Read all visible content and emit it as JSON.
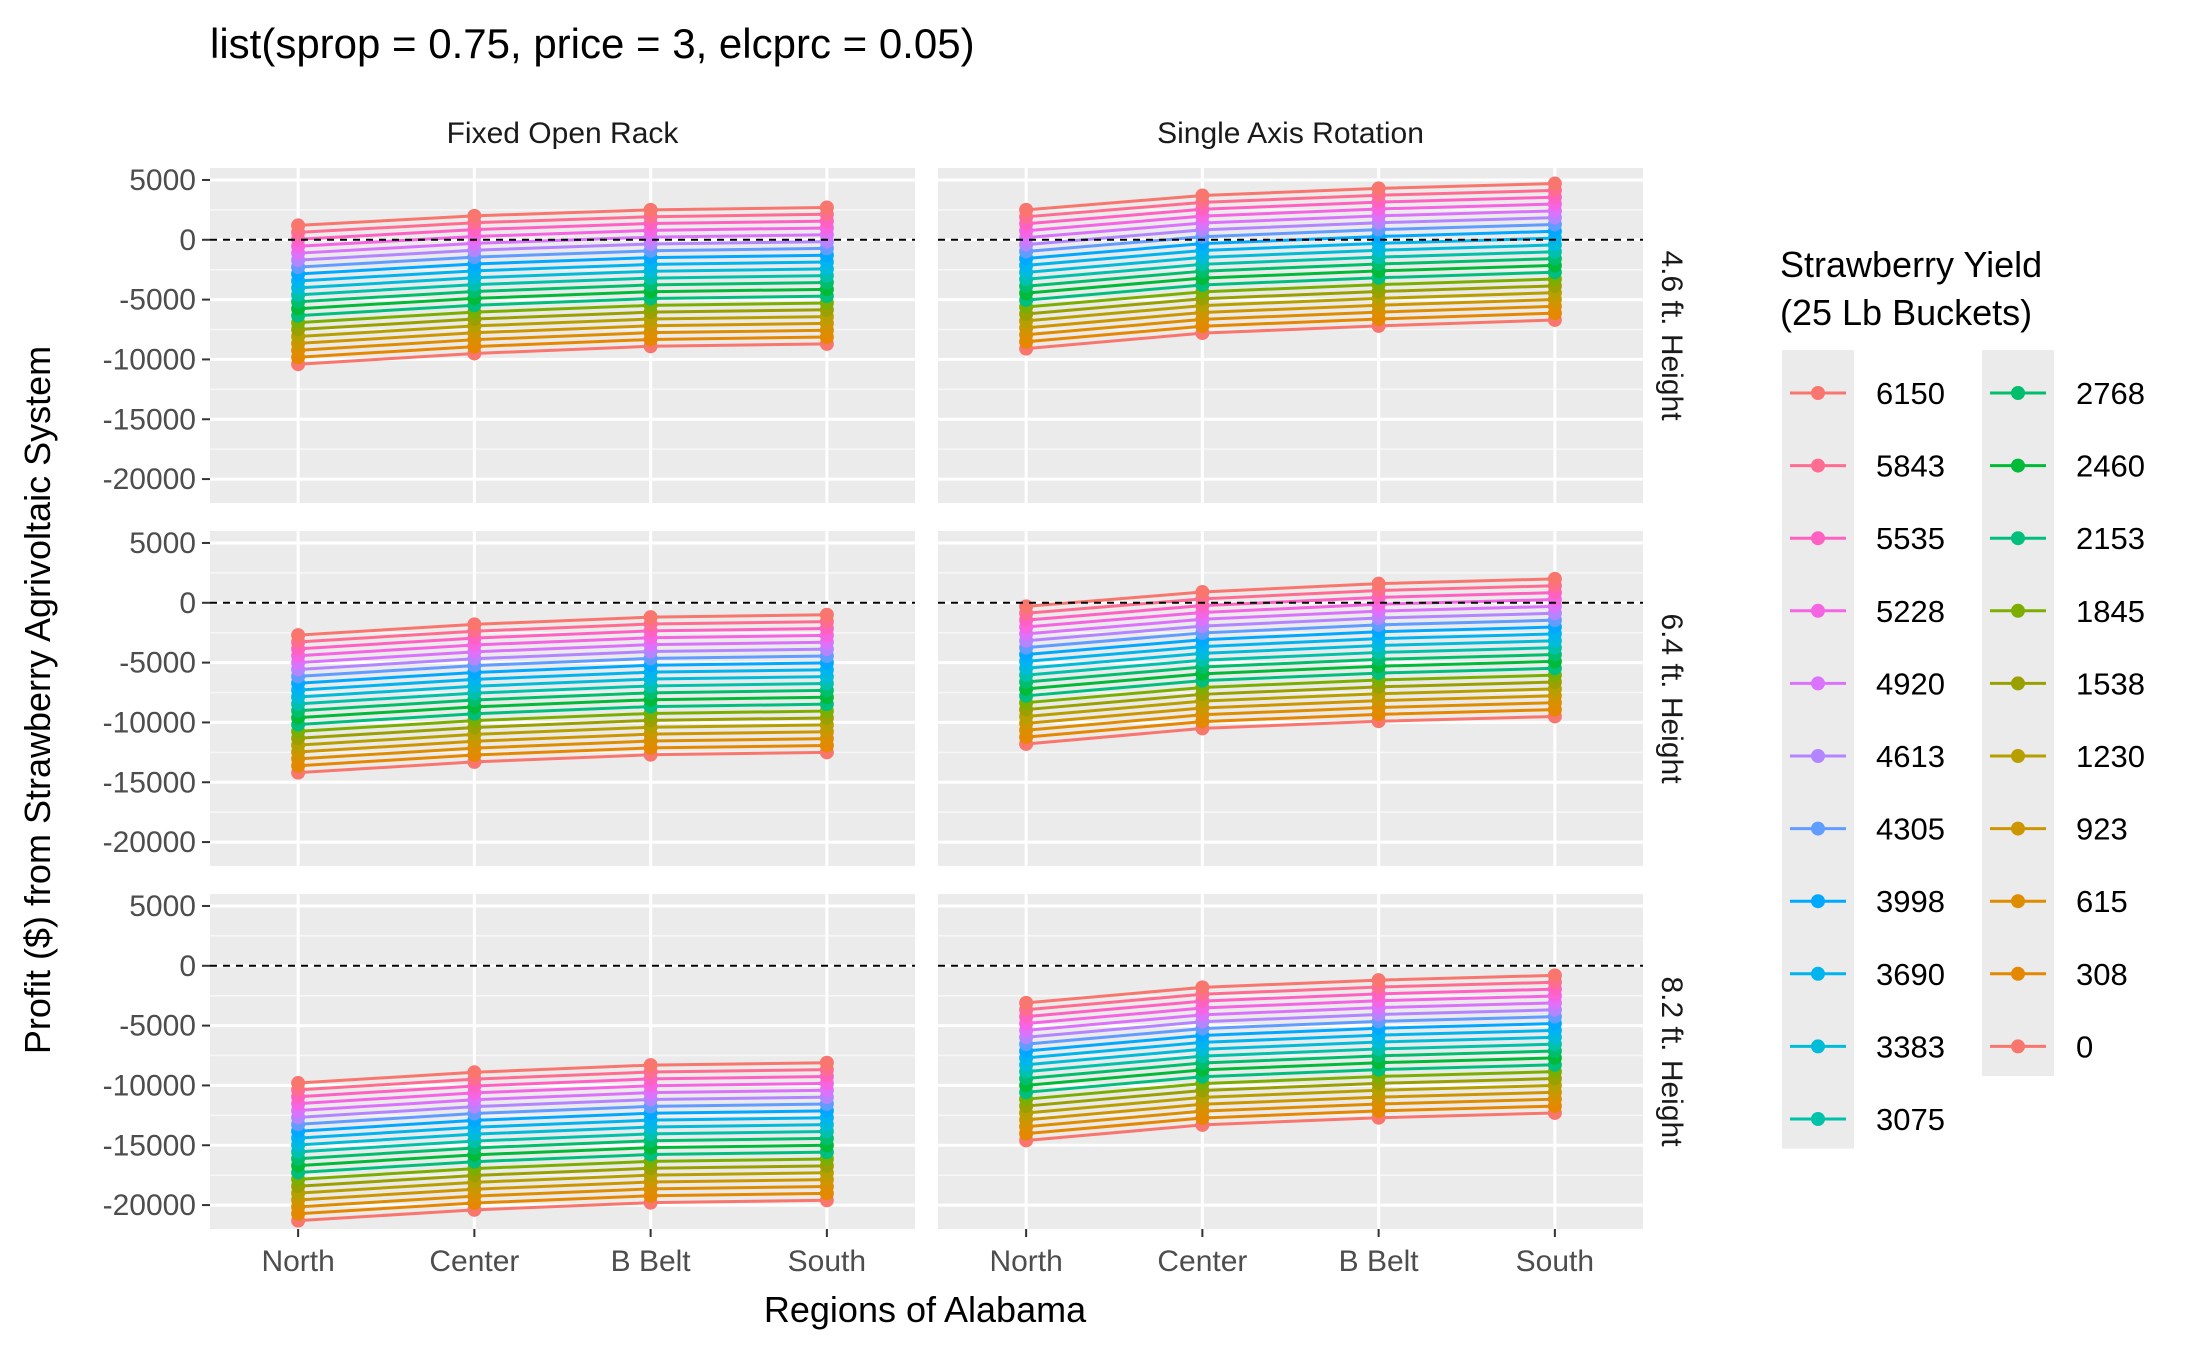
{
  "chart_data": {
    "type": "line",
    "title": "list(sprop = 0.75, price = 3, elcprc = 0.05)",
    "xlabel": "Regions of Alabama",
    "ylabel": "Profit ($) from Strawberry Agrivoltaic System",
    "categories": [
      "North",
      "Center",
      "B Belt",
      "South"
    ],
    "ylim": [
      -22000,
      6000
    ],
    "yticks": [
      5000,
      0,
      -5000,
      -10000,
      -15000,
      -20000
    ],
    "reference_line": 0,
    "grid": true,
    "legend": {
      "title": "Strawberry Yield\n (25 Lb Buckets)",
      "placement": "right",
      "entries": [
        "6150",
        "5843",
        "5535",
        "5228",
        "4920",
        "4613",
        "4305",
        "3998",
        "3690",
        "3383",
        "3075",
        "2768",
        "2460",
        "2153",
        "1845",
        "1538",
        "1230",
        "923",
        "615",
        "308",
        "0"
      ]
    },
    "colors": [
      "#F8766D",
      "#FF6C91",
      "#FF61C3",
      "#F564E3",
      "#DB72FB",
      "#B385FF",
      "#619CFF",
      "#00A9FF",
      "#00B4EF",
      "#00BCD8",
      "#00C1AA",
      "#00BE6C",
      "#00BA38",
      "#00BF7D",
      "#7CAE00",
      "#9AA000",
      "#B79F00",
      "#CD9600",
      "#DE8C00",
      "#E58700",
      "#F8766D"
    ],
    "facet_columns": [
      "Fixed Open Rack",
      "Single Axis Rotation"
    ],
    "facet_rows": [
      "4.6 ft. Height",
      "6.4 ft. Height",
      "8.2 ft. Height"
    ],
    "panels": [
      {
        "column": "Fixed Open Rack",
        "row": "4.6 ft. Height",
        "top": [
          1200,
          2000,
          2500,
          2700
        ],
        "bottom": [
          -10400,
          -9500,
          -8900,
          -8700
        ]
      },
      {
        "column": "Single Axis Rotation",
        "row": "4.6 ft. Height",
        "top": [
          2500,
          3700,
          4300,
          4700
        ],
        "bottom": [
          -9100,
          -7800,
          -7200,
          -6700
        ]
      },
      {
        "column": "Fixed Open Rack",
        "row": "6.4 ft. Height",
        "top": [
          -2700,
          -1800,
          -1200,
          -1000
        ],
        "bottom": [
          -14200,
          -13300,
          -12700,
          -12500
        ]
      },
      {
        "column": "Single Axis Rotation",
        "row": "6.4 ft. Height",
        "top": [
          -300,
          900,
          1600,
          2000
        ],
        "bottom": [
          -11800,
          -10500,
          -9900,
          -9500
        ]
      },
      {
        "column": "Fixed Open Rack",
        "row": "8.2 ft. Height",
        "top": [
          -9800,
          -8900,
          -8300,
          -8100
        ],
        "bottom": [
          -21300,
          -20400,
          -19800,
          -19600
        ]
      },
      {
        "column": "Single Axis Rotation",
        "row": "8.2 ft. Height",
        "top": [
          -3100,
          -1800,
          -1200,
          -800
        ],
        "bottom": [
          -14600,
          -13300,
          -12700,
          -12300
        ]
      }
    ]
  }
}
